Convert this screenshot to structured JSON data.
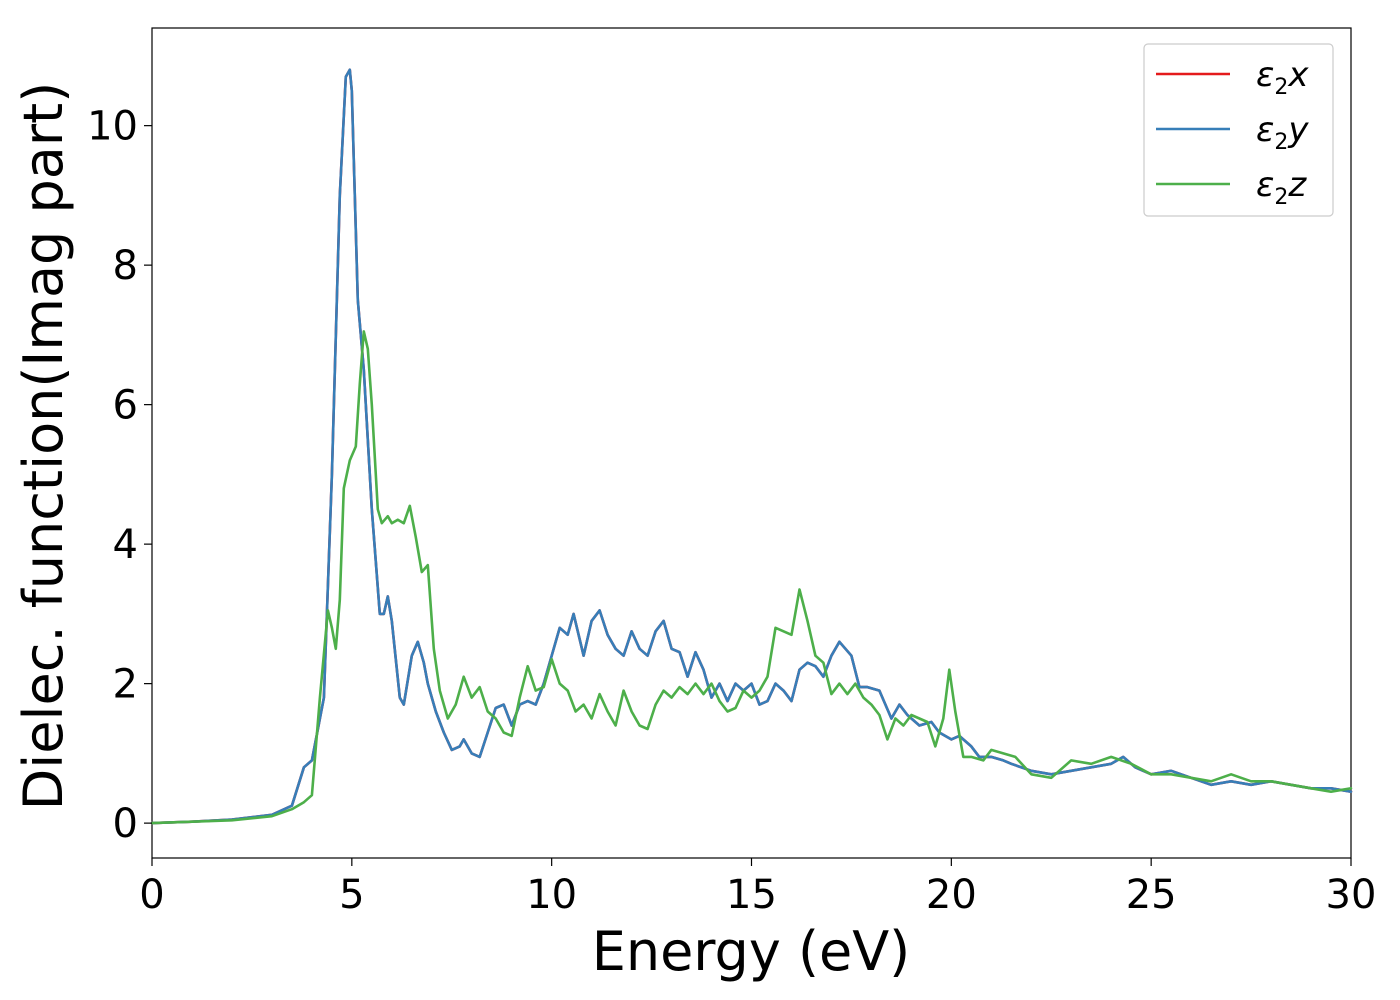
{
  "chart_data": {
    "type": "line",
    "title": "",
    "xlabel": "Energy (eV)",
    "ylabel": "Dielec. function(Imag part)",
    "xlim": [
      0,
      30
    ],
    "ylim": [
      -0.5,
      11.4
    ],
    "xticks": [
      0,
      5,
      10,
      15,
      20,
      25,
      30
    ],
    "xtick_labels": [
      "0",
      "5",
      "10",
      "15",
      "20",
      "25",
      "30"
    ],
    "yticks": [
      0,
      2,
      4,
      6,
      8,
      10
    ],
    "ytick_labels": [
      "0",
      "2",
      "4",
      "6",
      "8",
      "10"
    ],
    "grid": false,
    "legend_position": "top-right",
    "series": [
      {
        "name": "ε2x",
        "symbol": "ε",
        "subscript": "2",
        "axis": "x",
        "color": "#e41a1c",
        "x": [
          0,
          1,
          2,
          3,
          3.5,
          3.8,
          4.0,
          4.3,
          4.5,
          4.7,
          4.85,
          4.95,
          5.0,
          5.05,
          5.15,
          5.3,
          5.5,
          5.7,
          5.8,
          5.9,
          6.0,
          6.2,
          6.3,
          6.5,
          6.65,
          6.8,
          6.9,
          7.1,
          7.3,
          7.5,
          7.7,
          7.8,
          8.0,
          8.2,
          8.4,
          8.6,
          8.8,
          9.0,
          9.2,
          9.4,
          9.6,
          9.8,
          10.0,
          10.2,
          10.4,
          10.55,
          10.8,
          11.0,
          11.2,
          11.4,
          11.6,
          11.8,
          12.0,
          12.2,
          12.4,
          12.6,
          12.8,
          13.0,
          13.2,
          13.4,
          13.6,
          13.8,
          14.0,
          14.2,
          14.4,
          14.6,
          14.8,
          15.0,
          15.2,
          15.4,
          15.6,
          15.8,
          16.0,
          16.2,
          16.4,
          16.6,
          16.8,
          17.0,
          17.2,
          17.5,
          17.7,
          17.9,
          18.2,
          18.5,
          18.7,
          18.9,
          19.2,
          19.5,
          19.7,
          20.0,
          20.2,
          20.5,
          20.7,
          21.0,
          21.3,
          21.5,
          22.0,
          22.5,
          23.0,
          23.5,
          24.0,
          24.3,
          24.6,
          25.0,
          25.5,
          26.0,
          26.5,
          27.0,
          27.5,
          28.0,
          28.5,
          29.0,
          29.5,
          30.0
        ],
        "y": [
          0,
          0.02,
          0.05,
          0.12,
          0.25,
          0.8,
          0.9,
          1.8,
          5.0,
          9.0,
          10.7,
          10.8,
          10.5,
          9.5,
          7.5,
          6.5,
          4.5,
          3.0,
          3.0,
          3.25,
          2.9,
          1.8,
          1.7,
          2.4,
          2.6,
          2.3,
          2.0,
          1.6,
          1.3,
          1.05,
          1.1,
          1.2,
          1.0,
          0.95,
          1.3,
          1.65,
          1.7,
          1.4,
          1.7,
          1.75,
          1.7,
          2.0,
          2.4,
          2.8,
          2.7,
          3.0,
          2.4,
          2.9,
          3.05,
          2.7,
          2.5,
          2.4,
          2.75,
          2.5,
          2.4,
          2.75,
          2.9,
          2.5,
          2.45,
          2.1,
          2.45,
          2.2,
          1.8,
          2.0,
          1.75,
          2.0,
          1.9,
          2.0,
          1.7,
          1.75,
          2.0,
          1.9,
          1.75,
          2.2,
          2.3,
          2.25,
          2.1,
          2.4,
          2.6,
          2.4,
          1.95,
          1.95,
          1.9,
          1.5,
          1.7,
          1.55,
          1.4,
          1.45,
          1.3,
          1.2,
          1.25,
          1.1,
          0.95,
          0.95,
          0.9,
          0.85,
          0.75,
          0.7,
          0.75,
          0.8,
          0.85,
          0.95,
          0.8,
          0.7,
          0.75,
          0.65,
          0.55,
          0.6,
          0.55,
          0.6,
          0.55,
          0.5,
          0.5,
          0.45
        ]
      },
      {
        "name": "ε2y",
        "symbol": "ε",
        "subscript": "2",
        "axis": "y",
        "color": "#377eb8",
        "x": [
          0,
          1,
          2,
          3,
          3.5,
          3.8,
          4.0,
          4.3,
          4.5,
          4.7,
          4.85,
          4.95,
          5.0,
          5.05,
          5.15,
          5.3,
          5.5,
          5.7,
          5.8,
          5.9,
          6.0,
          6.2,
          6.3,
          6.5,
          6.65,
          6.8,
          6.9,
          7.1,
          7.3,
          7.5,
          7.7,
          7.8,
          8.0,
          8.2,
          8.4,
          8.6,
          8.8,
          9.0,
          9.2,
          9.4,
          9.6,
          9.8,
          10.0,
          10.2,
          10.4,
          10.55,
          10.8,
          11.0,
          11.2,
          11.4,
          11.6,
          11.8,
          12.0,
          12.2,
          12.4,
          12.6,
          12.8,
          13.0,
          13.2,
          13.4,
          13.6,
          13.8,
          14.0,
          14.2,
          14.4,
          14.6,
          14.8,
          15.0,
          15.2,
          15.4,
          15.6,
          15.8,
          16.0,
          16.2,
          16.4,
          16.6,
          16.8,
          17.0,
          17.2,
          17.5,
          17.7,
          17.9,
          18.2,
          18.5,
          18.7,
          18.9,
          19.2,
          19.5,
          19.7,
          20.0,
          20.2,
          20.5,
          20.7,
          21.0,
          21.3,
          21.5,
          22.0,
          22.5,
          23.0,
          23.5,
          24.0,
          24.3,
          24.6,
          25.0,
          25.5,
          26.0,
          26.5,
          27.0,
          27.5,
          28.0,
          28.5,
          29.0,
          29.5,
          30.0
        ],
        "y": [
          0,
          0.02,
          0.05,
          0.12,
          0.25,
          0.8,
          0.9,
          1.8,
          5.0,
          9.0,
          10.7,
          10.8,
          10.5,
          9.5,
          7.5,
          6.5,
          4.5,
          3.0,
          3.0,
          3.25,
          2.9,
          1.8,
          1.7,
          2.4,
          2.6,
          2.3,
          2.0,
          1.6,
          1.3,
          1.05,
          1.1,
          1.2,
          1.0,
          0.95,
          1.3,
          1.65,
          1.7,
          1.4,
          1.7,
          1.75,
          1.7,
          2.0,
          2.4,
          2.8,
          2.7,
          3.0,
          2.4,
          2.9,
          3.05,
          2.7,
          2.5,
          2.4,
          2.75,
          2.5,
          2.4,
          2.75,
          2.9,
          2.5,
          2.45,
          2.1,
          2.45,
          2.2,
          1.8,
          2.0,
          1.75,
          2.0,
          1.9,
          2.0,
          1.7,
          1.75,
          2.0,
          1.9,
          1.75,
          2.2,
          2.3,
          2.25,
          2.1,
          2.4,
          2.6,
          2.4,
          1.95,
          1.95,
          1.9,
          1.5,
          1.7,
          1.55,
          1.4,
          1.45,
          1.3,
          1.2,
          1.25,
          1.1,
          0.95,
          0.95,
          0.9,
          0.85,
          0.75,
          0.7,
          0.75,
          0.8,
          0.85,
          0.95,
          0.8,
          0.7,
          0.75,
          0.65,
          0.55,
          0.6,
          0.55,
          0.6,
          0.55,
          0.5,
          0.5,
          0.45
        ]
      },
      {
        "name": "ε2z",
        "symbol": "ε",
        "subscript": "2",
        "axis": "z",
        "color": "#4daf4a",
        "x": [
          0,
          1,
          2,
          3,
          3.5,
          3.8,
          4.0,
          4.2,
          4.4,
          4.5,
          4.6,
          4.7,
          4.8,
          4.95,
          5.1,
          5.2,
          5.3,
          5.4,
          5.5,
          5.65,
          5.75,
          5.9,
          6.0,
          6.15,
          6.3,
          6.45,
          6.6,
          6.75,
          6.9,
          7.05,
          7.2,
          7.4,
          7.6,
          7.8,
          8.0,
          8.2,
          8.4,
          8.6,
          8.8,
          9.0,
          9.2,
          9.4,
          9.6,
          9.8,
          10.0,
          10.2,
          10.4,
          10.6,
          10.8,
          11.0,
          11.2,
          11.4,
          11.6,
          11.8,
          12.0,
          12.2,
          12.4,
          12.6,
          12.8,
          13.0,
          13.2,
          13.4,
          13.6,
          13.8,
          14.0,
          14.2,
          14.4,
          14.6,
          14.8,
          15.0,
          15.2,
          15.4,
          15.6,
          15.8,
          16.0,
          16.2,
          16.4,
          16.6,
          16.8,
          17.0,
          17.2,
          17.4,
          17.6,
          17.8,
          18.0,
          18.2,
          18.4,
          18.6,
          18.8,
          19.0,
          19.2,
          19.4,
          19.6,
          19.8,
          19.95,
          20.1,
          20.3,
          20.5,
          20.8,
          21.0,
          21.3,
          21.6,
          22.0,
          22.5,
          23.0,
          23.5,
          24.0,
          24.5,
          25.0,
          25.5,
          26.0,
          26.5,
          27.0,
          27.5,
          28.0,
          28.5,
          29.0,
          29.5,
          30.0
        ],
        "y": [
          0,
          0.02,
          0.04,
          0.1,
          0.2,
          0.3,
          0.4,
          1.8,
          3.05,
          2.8,
          2.5,
          3.2,
          4.8,
          5.2,
          5.4,
          6.3,
          7.05,
          6.8,
          6.0,
          4.5,
          4.3,
          4.4,
          4.3,
          4.35,
          4.3,
          4.55,
          4.1,
          3.6,
          3.7,
          2.5,
          1.9,
          1.5,
          1.7,
          2.1,
          1.8,
          1.95,
          1.6,
          1.5,
          1.3,
          1.25,
          1.8,
          2.25,
          1.9,
          1.95,
          2.35,
          2.0,
          1.9,
          1.6,
          1.7,
          1.5,
          1.85,
          1.6,
          1.4,
          1.9,
          1.6,
          1.4,
          1.35,
          1.7,
          1.9,
          1.8,
          1.95,
          1.85,
          2.0,
          1.85,
          2.0,
          1.75,
          1.6,
          1.65,
          1.9,
          1.8,
          1.9,
          2.1,
          2.8,
          2.75,
          2.7,
          3.35,
          2.9,
          2.4,
          2.3,
          1.85,
          2.0,
          1.85,
          2.0,
          1.8,
          1.7,
          1.55,
          1.2,
          1.5,
          1.4,
          1.55,
          1.5,
          1.45,
          1.1,
          1.5,
          2.2,
          1.6,
          0.95,
          0.95,
          0.9,
          1.05,
          1.0,
          0.95,
          0.7,
          0.65,
          0.9,
          0.85,
          0.95,
          0.85,
          0.7,
          0.7,
          0.65,
          0.6,
          0.7,
          0.6,
          0.6,
          0.55,
          0.5,
          0.45,
          0.5
        ]
      }
    ]
  }
}
